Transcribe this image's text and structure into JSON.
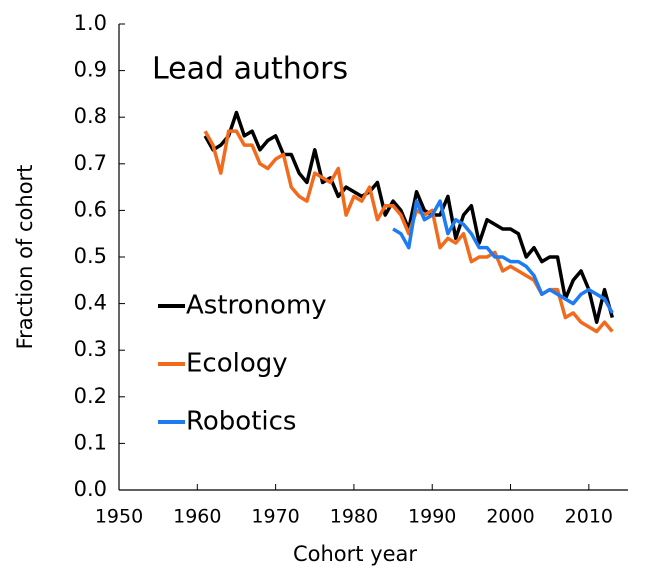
{
  "chart_data": {
    "type": "line",
    "title": "Lead authors",
    "x_label": "Cohort year",
    "y_label": "Fraction of cohort",
    "x": [
      1961,
      1962,
      1963,
      1964,
      1965,
      1966,
      1967,
      1968,
      1969,
      1970,
      1971,
      1972,
      1973,
      1974,
      1975,
      1976,
      1977,
      1978,
      1979,
      1980,
      1981,
      1982,
      1983,
      1984,
      1985,
      1986,
      1987,
      1988,
      1989,
      1990,
      1991,
      1992,
      1993,
      1994,
      1995,
      1996,
      1997,
      1998,
      1999,
      2000,
      2001,
      2002,
      2003,
      2004,
      2005,
      2006,
      2007,
      2008,
      2009,
      2010,
      2011,
      2012,
      2013
    ],
    "series": [
      {
        "name": "Astronomy",
        "color": "#000000",
        "values": [
          0.76,
          0.73,
          0.74,
          0.76,
          0.81,
          0.76,
          0.77,
          0.73,
          0.75,
          0.76,
          0.72,
          0.72,
          0.68,
          0.66,
          0.73,
          0.66,
          0.67,
          0.63,
          0.65,
          0.64,
          0.63,
          0.64,
          0.66,
          0.59,
          0.62,
          0.6,
          0.56,
          0.64,
          0.6,
          0.59,
          0.59,
          0.63,
          0.54,
          0.59,
          0.61,
          0.53,
          0.58,
          0.57,
          0.56,
          0.56,
          0.55,
          0.5,
          0.52,
          0.49,
          0.5,
          0.5,
          0.41,
          0.45,
          0.47,
          0.43,
          0.36,
          0.43,
          0.37
        ]
      },
      {
        "name": "Ecology",
        "color": "#f26b1d",
        "values": [
          0.77,
          0.74,
          0.68,
          0.77,
          0.77,
          0.74,
          0.74,
          0.7,
          0.69,
          0.71,
          0.72,
          0.65,
          0.63,
          0.62,
          0.68,
          0.67,
          0.66,
          0.69,
          0.59,
          0.63,
          0.62,
          0.65,
          0.58,
          0.61,
          0.61,
          0.59,
          0.55,
          0.6,
          0.59,
          0.6,
          0.52,
          0.54,
          0.53,
          0.55,
          0.49,
          0.5,
          0.5,
          0.51,
          0.47,
          0.48,
          0.47,
          0.46,
          0.45,
          0.42,
          0.43,
          0.43,
          0.37,
          0.38,
          0.36,
          0.35,
          0.34,
          0.36,
          0.34
        ]
      },
      {
        "name": "Robotics",
        "color": "#1f7cf0",
        "values": [
          null,
          null,
          null,
          null,
          null,
          null,
          null,
          null,
          null,
          null,
          null,
          null,
          null,
          null,
          null,
          null,
          null,
          null,
          null,
          null,
          null,
          null,
          null,
          null,
          0.56,
          0.55,
          0.52,
          0.62,
          0.58,
          0.59,
          0.62,
          0.55,
          0.58,
          0.57,
          0.55,
          0.52,
          0.52,
          0.5,
          0.5,
          0.49,
          0.49,
          0.48,
          0.46,
          0.42,
          0.43,
          0.42,
          0.41,
          0.4,
          0.42,
          0.43,
          0.42,
          0.41,
          0.38
        ]
      }
    ],
    "xlim": [
      1950,
      2015
    ],
    "xticks": [
      1950,
      1960,
      1970,
      1980,
      1990,
      2000,
      2010
    ],
    "ylim": [
      0,
      1
    ],
    "yticks": [
      {
        "value": 0,
        "label": "0.0"
      },
      0.1,
      0.2,
      0.3,
      0.4,
      0.5,
      0.6,
      0.7,
      0.8,
      0.9,
      {
        "value": 1,
        "label": "1.0"
      }
    ],
    "legend": "lower left"
  }
}
